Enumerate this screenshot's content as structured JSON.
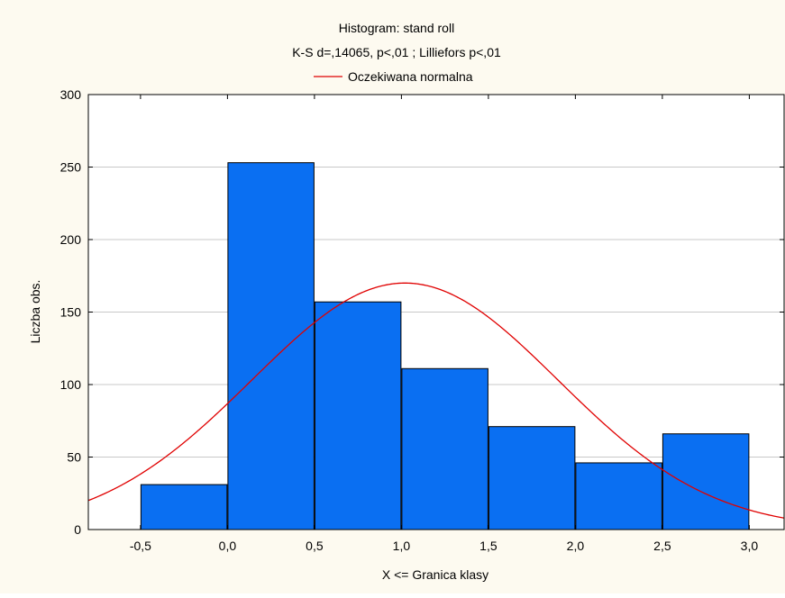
{
  "chart_data": {
    "type": "bar",
    "title": "Histogram: stand roll",
    "subtitle": "K-S d=,14065, p<,01 ; Lilliefors p<,01",
    "legend": {
      "label": "Oczekiwana normalna",
      "placement": "top"
    },
    "xlabel": "X <= Granica klasy",
    "ylabel": "Liczba obs.",
    "xlim": [
      -0.8,
      3.2
    ],
    "ylim": [
      0,
      300
    ],
    "x_ticks": [
      -0.5,
      0.0,
      0.5,
      1.0,
      1.5,
      2.0,
      2.5,
      3.0
    ],
    "x_tick_labels": [
      "-0,5",
      "0,0",
      "0,5",
      "1,0",
      "1,5",
      "2,0",
      "2,5",
      "3,0"
    ],
    "y_ticks": [
      0,
      50,
      100,
      150,
      200,
      250,
      300
    ],
    "y_tick_labels": [
      "0",
      "50",
      "100",
      "150",
      "200",
      "250",
      "300"
    ],
    "grid": true,
    "bins": [
      {
        "from": -0.5,
        "to": 0.0,
        "count": 31
      },
      {
        "from": 0.0,
        "to": 0.5,
        "count": 253
      },
      {
        "from": 0.5,
        "to": 1.0,
        "count": 157
      },
      {
        "from": 1.0,
        "to": 1.5,
        "count": 111
      },
      {
        "from": 1.5,
        "to": 2.0,
        "count": 71
      },
      {
        "from": 2.0,
        "to": 2.5,
        "count": 46
      },
      {
        "from": 2.5,
        "to": 3.0,
        "count": 66
      }
    ],
    "normal_curve": {
      "mean": 1.02,
      "sd": 0.88,
      "peak": 170,
      "color": "#e00000"
    },
    "bar_color": "#0a6ff2"
  }
}
